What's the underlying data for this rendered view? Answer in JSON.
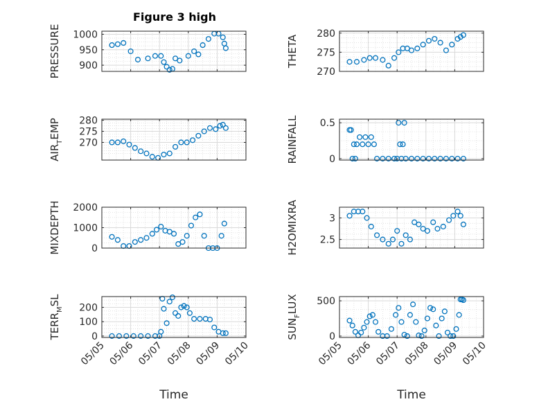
{
  "figure": {
    "title": "Figure 3 high",
    "marker_color": "#0072BD",
    "x_axis": {
      "label": "Time",
      "tick_labels": [
        "05/05",
        "05/06",
        "05/07",
        "05/08",
        "05/09",
        "05/10"
      ]
    }
  },
  "chart_data": [
    {
      "type": "scatter",
      "ylabel": "PRESSURE",
      "ylim": [
        880,
        1010
      ],
      "yticks": [
        900,
        950,
        1000
      ],
      "ytick_labels": [
        "900",
        "950",
        "1000"
      ],
      "grid": true,
      "xlim": [
        5.0,
        10.0
      ],
      "series": [
        {
          "x": [
            5.35,
            5.55,
            5.75,
            6.0,
            6.25,
            6.6,
            6.85,
            7.05,
            7.15,
            7.25,
            7.35,
            7.45,
            7.55,
            7.7,
            8.0,
            8.2,
            8.35,
            8.5,
            8.7,
            8.9,
            9.05,
            9.2,
            9.25,
            9.3
          ],
          "y": [
            965,
            968,
            972,
            945,
            918,
            922,
            930,
            930,
            910,
            895,
            885,
            888,
            922,
            915,
            930,
            945,
            935,
            965,
            985,
            1002,
            1002,
            990,
            970,
            955
          ]
        }
      ]
    },
    {
      "type": "scatter",
      "ylabel": "THETA",
      "ylim": [
        270,
        280.5
      ],
      "yticks": [
        270,
        275,
        280
      ],
      "ytick_labels": [
        "270",
        "275",
        "280"
      ],
      "grid": true,
      "xlim": [
        5.0,
        10.0
      ],
      "series": [
        {
          "x": [
            5.35,
            5.6,
            5.85,
            6.05,
            6.25,
            6.5,
            6.7,
            6.9,
            7.05,
            7.2,
            7.35,
            7.5,
            7.7,
            7.9,
            8.1,
            8.3,
            8.5,
            8.7,
            8.9,
            9.1,
            9.2,
            9.3
          ],
          "y": [
            272.5,
            272.5,
            273,
            273.5,
            273.5,
            273,
            271.5,
            273.5,
            275,
            276,
            276,
            275.5,
            276,
            277,
            278,
            278.5,
            277.5,
            275.5,
            277,
            278.5,
            279,
            279.5
          ]
        }
      ]
    },
    {
      "type": "scatter",
      "ylabel": "AIR_TEMP",
      "ylim": [
        262,
        280.5
      ],
      "yticks": [
        270,
        275,
        280
      ],
      "ytick_labels": [
        "270",
        "275",
        "280"
      ],
      "grid": true,
      "xlim": [
        5.0,
        10.0
      ],
      "series": [
        {
          "x": [
            5.35,
            5.55,
            5.75,
            5.95,
            6.15,
            6.35,
            6.55,
            6.75,
            6.95,
            7.15,
            7.35,
            7.55,
            7.75,
            7.95,
            8.15,
            8.35,
            8.55,
            8.75,
            8.95,
            9.1,
            9.2,
            9.3
          ],
          "y": [
            270,
            270,
            270.5,
            269,
            267.5,
            266,
            265,
            263.5,
            263,
            264.5,
            265,
            268,
            270,
            270,
            271,
            273,
            275,
            276.5,
            276,
            277.5,
            278,
            276.5
          ]
        }
      ]
    },
    {
      "type": "scatter",
      "ylabel": "RAINFALL",
      "ylim": [
        -0.02,
        0.55
      ],
      "yticks": [
        0,
        0.5
      ],
      "ytick_labels": [
        "0",
        "0.5"
      ],
      "grid": true,
      "xlim": [
        5.0,
        10.0
      ],
      "series": [
        {
          "x": [
            5.35,
            5.4,
            5.45,
            5.5,
            5.55,
            5.6,
            5.7,
            5.8,
            5.9,
            6.0,
            6.1,
            6.2,
            6.3,
            6.5,
            6.7,
            6.9,
            7.0,
            7.05,
            7.1,
            7.15,
            7.2,
            7.25,
            7.3,
            7.5,
            7.7,
            7.9,
            8.1,
            8.3,
            8.5,
            8.7,
            8.9,
            9.1,
            9.3
          ],
          "y": [
            0.4,
            0.4,
            0,
            0.2,
            0,
            0.2,
            0.3,
            0.2,
            0.3,
            0.2,
            0.3,
            0.2,
            0,
            0,
            0,
            0,
            0,
            0.5,
            0.2,
            0,
            0.2,
            0.5,
            0,
            0,
            0,
            0,
            0,
            0,
            0,
            0,
            0,
            0,
            0
          ]
        }
      ]
    },
    {
      "type": "scatter",
      "ylabel": "MIXDEPTH",
      "ylim": [
        0,
        2000
      ],
      "yticks": [
        0,
        1000,
        2000
      ],
      "ytick_labels": [
        "0",
        "1000",
        "2000"
      ],
      "grid": true,
      "xlim": [
        5.0,
        10.0
      ],
      "series": [
        {
          "x": [
            5.35,
            5.55,
            5.75,
            5.95,
            6.15,
            6.35,
            6.55,
            6.75,
            6.9,
            7.05,
            7.2,
            7.35,
            7.5,
            7.65,
            7.8,
            7.95,
            8.1,
            8.25,
            8.4,
            8.55,
            8.7,
            8.85,
            9.0,
            9.15,
            9.25
          ],
          "y": [
            550,
            400,
            100,
            100,
            300,
            400,
            500,
            700,
            900,
            1050,
            850,
            800,
            700,
            200,
            300,
            600,
            1100,
            1500,
            1650,
            600,
            0,
            0,
            0,
            600,
            1200
          ]
        }
      ]
    },
    {
      "type": "scatter",
      "ylabel": "H2OMIXRA",
      "ylim": [
        2.3,
        3.25
      ],
      "yticks": [
        2.5,
        3
      ],
      "ytick_labels": [
        "2.5",
        "3"
      ],
      "grid": true,
      "xlim": [
        5.0,
        10.0
      ],
      "series": [
        {
          "x": [
            5.35,
            5.5,
            5.65,
            5.8,
            5.95,
            6.1,
            6.3,
            6.5,
            6.7,
            6.85,
            7.0,
            7.15,
            7.3,
            7.45,
            7.6,
            7.75,
            7.9,
            8.05,
            8.25,
            8.4,
            8.6,
            8.8,
            8.95,
            9.1,
            9.2,
            9.3
          ],
          "y": [
            3.05,
            3.15,
            3.15,
            3.15,
            3.0,
            2.8,
            2.6,
            2.5,
            2.4,
            2.5,
            2.7,
            2.4,
            2.6,
            2.5,
            2.9,
            2.85,
            2.75,
            2.7,
            2.9,
            2.75,
            2.8,
            2.95,
            3.05,
            3.15,
            3.05,
            2.85
          ]
        }
      ]
    },
    {
      "type": "scatter",
      "ylabel": "TERR_MSL",
      "ylim": [
        -10,
        275
      ],
      "yticks": [
        0,
        100,
        200
      ],
      "ytick_labels": [
        "0",
        "100",
        "200"
      ],
      "grid": true,
      "xlim": [
        5.0,
        10.0
      ],
      "series": [
        {
          "x": [
            5.35,
            5.6,
            5.85,
            6.1,
            6.35,
            6.6,
            6.85,
            7.0,
            7.05,
            7.1,
            7.15,
            7.25,
            7.35,
            7.45,
            7.55,
            7.65,
            7.75,
            7.85,
            7.95,
            8.05,
            8.2,
            8.4,
            8.6,
            8.75,
            8.9,
            9.05,
            9.2,
            9.3
          ],
          "y": [
            0,
            0,
            0,
            0,
            0,
            0,
            0,
            0,
            30,
            260,
            190,
            90,
            240,
            270,
            160,
            140,
            200,
            210,
            200,
            160,
            120,
            120,
            120,
            115,
            60,
            30,
            20,
            20
          ]
        }
      ]
    },
    {
      "type": "scatter",
      "ylabel": "SUN_FLUX",
      "ylim": [
        -20,
        560
      ],
      "yticks": [
        0,
        500
      ],
      "ytick_labels": [
        "0",
        "500"
      ],
      "grid": true,
      "xlim": [
        5.0,
        10.0
      ],
      "series": [
        {
          "x": [
            5.35,
            5.45,
            5.55,
            5.65,
            5.75,
            5.85,
            5.95,
            6.05,
            6.15,
            6.25,
            6.35,
            6.5,
            6.65,
            6.8,
            6.95,
            7.05,
            7.15,
            7.25,
            7.35,
            7.45,
            7.55,
            7.65,
            7.75,
            7.85,
            7.95,
            8.05,
            8.15,
            8.25,
            8.35,
            8.45,
            8.55,
            8.65,
            8.75,
            8.85,
            8.95,
            9.05,
            9.15,
            9.2,
            9.25,
            9.3
          ],
          "y": [
            220,
            150,
            60,
            10,
            50,
            120,
            200,
            280,
            300,
            200,
            60,
            0,
            0,
            100,
            300,
            400,
            200,
            20,
            0,
            300,
            450,
            200,
            10,
            0,
            80,
            250,
            400,
            380,
            150,
            0,
            250,
            350,
            50,
            0,
            0,
            100,
            300,
            520,
            520,
            510
          ]
        }
      ]
    }
  ]
}
